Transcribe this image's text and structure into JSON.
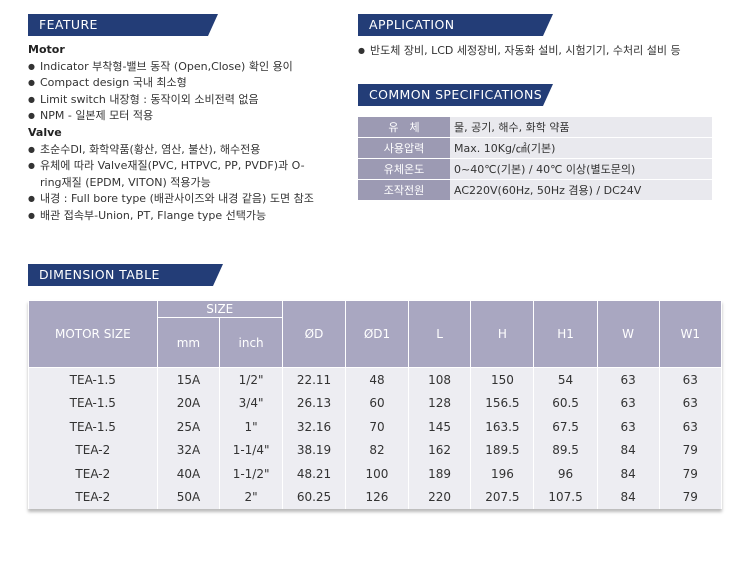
{
  "feature": {
    "title": "FEATURE",
    "groups": [
      {
        "heading": "Motor",
        "items": [
          "Indicator 부착형-밸브 동작 (Open,Close) 확인 용이",
          "Compact design 국내 최소형",
          "Limit switch 내장형 : 동작이외 소비전력 없음",
          "NPM - 일본제 모터 적용"
        ]
      },
      {
        "heading": "Valve",
        "items": [
          "초순수DI, 화학약품(황산, 염산, 불산), 해수전용",
          "유체에 따라 Valve재질(PVC, HTPVC, PP, PVDF)과 O-ring재질 (EPDM, VITON) 적용가능",
          "내경 : Full bore type (배관사이즈와 내경 같음) 도면 참조",
          "배관 접속부-Union, PT, Flange type 선택가능"
        ]
      }
    ]
  },
  "application": {
    "title": "APPLICATION",
    "items": [
      "반도체 장비, LCD 세정장비, 자동화 설비, 시험기기, 수처리 설비 등"
    ]
  },
  "common_specifications": {
    "title": "COMMON SPECIFICATIONS",
    "rows": [
      [
        "유　체",
        "물, 공기, 해수, 화학 약품"
      ],
      [
        "사용압력",
        "Max. 10Kg/㎠(기본)"
      ],
      [
        "유체온도",
        "0~40℃(기본) / 40℃ 이상(별도문의)"
      ],
      [
        "조작전원",
        "AC220V(60Hz, 50Hz 겸용) / DC24V"
      ]
    ]
  },
  "dimension_table": {
    "title": "DIMENSION TABLE",
    "header": {
      "motor_size": "MOTOR SIZE",
      "size": "SIZE",
      "size_units": [
        "mm",
        "inch"
      ],
      "columns": [
        "ØD",
        "ØD1",
        "L",
        "H",
        "H1",
        "W",
        "W1"
      ]
    },
    "rows": [
      [
        "TEA-1.5",
        "15A",
        "1/2\"",
        "22.11",
        "48",
        "108",
        "150",
        "54",
        "63",
        "63"
      ],
      [
        "TEA-1.5",
        "20A",
        "3/4\"",
        "26.13",
        "60",
        "128",
        "156.5",
        "60.5",
        "63",
        "63"
      ],
      [
        "TEA-1.5",
        "25A",
        "1\"",
        "32.16",
        "70",
        "145",
        "163.5",
        "67.5",
        "63",
        "63"
      ],
      [
        "TEA-2",
        "32A",
        "1-1/4\"",
        "38.19",
        "82",
        "162",
        "189.5",
        "89.5",
        "84",
        "79"
      ],
      [
        "TEA-2",
        "40A",
        "1-1/2\"",
        "48.21",
        "100",
        "189",
        "196",
        "96",
        "84",
        "79"
      ],
      [
        "TEA-2",
        "50A",
        "2\"",
        "60.25",
        "126",
        "220",
        "207.5",
        "107.5",
        "84",
        "79"
      ]
    ]
  }
}
